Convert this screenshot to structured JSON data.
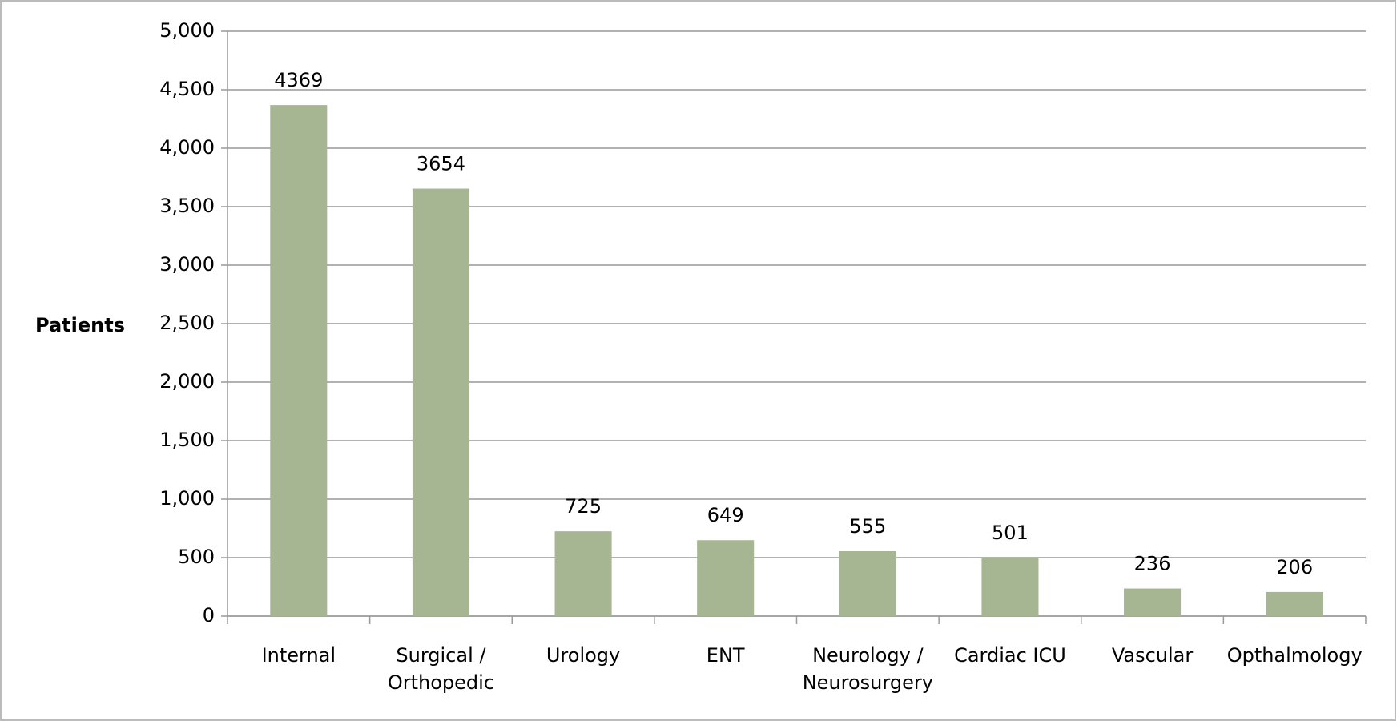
{
  "chart_data": {
    "type": "bar",
    "y_axis_label": "Patients",
    "categories": [
      "Internal",
      "Surgical /\nOrthopedic",
      "Urology",
      "ENT",
      "Neurology /\nNeurosurgery",
      "Cardiac ICU",
      "Vascular",
      "Opthalmology"
    ],
    "values": [
      4369,
      3654,
      725,
      649,
      555,
      501,
      236,
      206
    ],
    "color": "#a6b592",
    "ylim": [
      0,
      5000
    ],
    "yticks": [
      0,
      500,
      {
        "value": 1000,
        "label": "1,000"
      },
      {
        "value": 1500,
        "label": "1,500"
      },
      {
        "value": 2000,
        "label": "2,000"
      },
      {
        "value": 2500,
        "label": "2,500"
      },
      {
        "value": 3000,
        "label": "3,000"
      },
      {
        "value": 3500,
        "label": "3,500"
      },
      {
        "value": 4000,
        "label": "4,000"
      },
      {
        "value": 4500,
        "label": "4,500"
      },
      {
        "value": 5000,
        "label": "5,000"
      }
    ],
    "grid": true
  }
}
